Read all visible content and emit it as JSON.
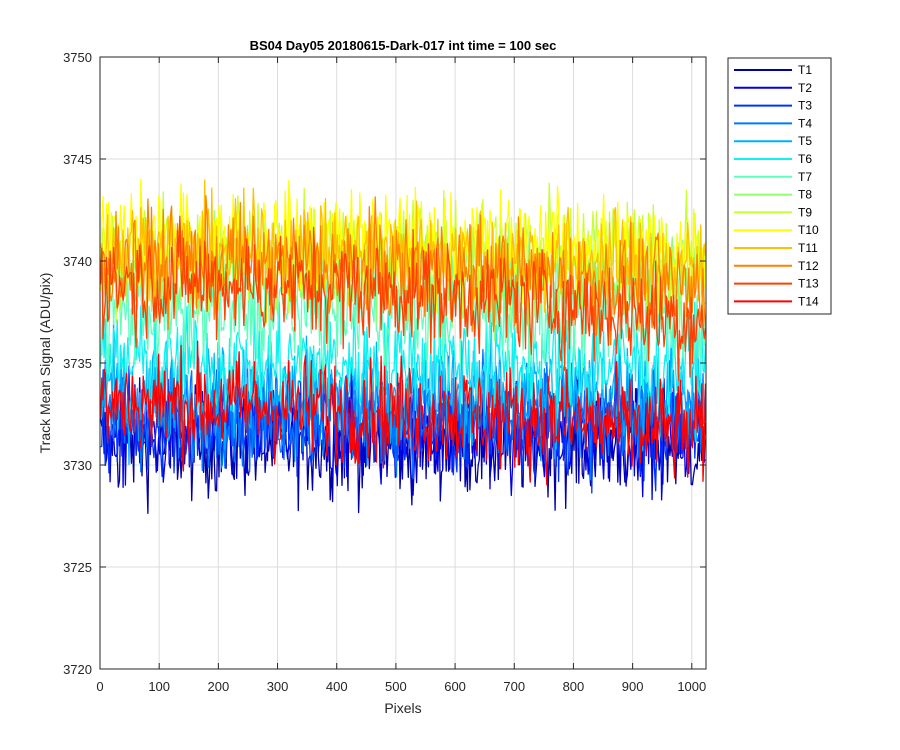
{
  "chart_data": {
    "type": "line",
    "title": "BS04 Day05 20180615-Dark-017 int time = 100 sec",
    "xlabel": "Pixels",
    "ylabel": "Track Mean Signal (ADU/pix)",
    "xlim": [
      0,
      1024
    ],
    "ylim": [
      3720,
      3750
    ],
    "xticks": [
      "0",
      "100",
      "200",
      "300",
      "400",
      "500",
      "600",
      "700",
      "800",
      "900",
      "1000"
    ],
    "yticks": [
      "3720",
      "3725",
      "3730",
      "3735",
      "3740",
      "3745",
      "3750"
    ],
    "grid": true,
    "legend_position": "outside-top-right",
    "series": [
      {
        "name": "T1",
        "color": "#0000a8",
        "mean": 3731.0,
        "noise": 1.3,
        "slope": 0.0
      },
      {
        "name": "T2",
        "color": "#0000e0",
        "mean": 3731.5,
        "noise": 1.3,
        "slope": 0.0
      },
      {
        "name": "T3",
        "color": "#0033ff",
        "mean": 3732.0,
        "noise": 1.3,
        "slope": 0.0
      },
      {
        "name": "T4",
        "color": "#0077ff",
        "mean": 3732.5,
        "noise": 1.3,
        "slope": 0.0
      },
      {
        "name": "T5",
        "color": "#00b0ff",
        "mean": 3733.5,
        "noise": 1.3,
        "slope": 0.0
      },
      {
        "name": "T6",
        "color": "#10f0f0",
        "mean": 3735.0,
        "noise": 1.3,
        "slope": 0.0
      },
      {
        "name": "T7",
        "color": "#60ffc0",
        "mean": 3737.5,
        "noise": 1.3,
        "slope": 0.0
      },
      {
        "name": "T8",
        "color": "#90ff70",
        "mean": 3739.5,
        "noise": 1.3,
        "slope": -0.3
      },
      {
        "name": "T9",
        "color": "#c8ff30",
        "mean": 3740.5,
        "noise": 1.3,
        "slope": -0.3
      },
      {
        "name": "T10",
        "color": "#ffff00",
        "mean": 3741.0,
        "noise": 1.3,
        "slope": -0.5
      },
      {
        "name": "T11",
        "color": "#ffc000",
        "mean": 3740.5,
        "noise": 1.3,
        "slope": -1.0
      },
      {
        "name": "T12",
        "color": "#ff8000",
        "mean": 3740.0,
        "noise": 1.3,
        "slope": -1.5
      },
      {
        "name": "T13",
        "color": "#ff4000",
        "mean": 3739.0,
        "noise": 1.3,
        "slope": -2.0
      },
      {
        "name": "T14",
        "color": "#ff0000",
        "mean": 3733.0,
        "noise": 1.3,
        "slope": -1.5
      }
    ]
  }
}
